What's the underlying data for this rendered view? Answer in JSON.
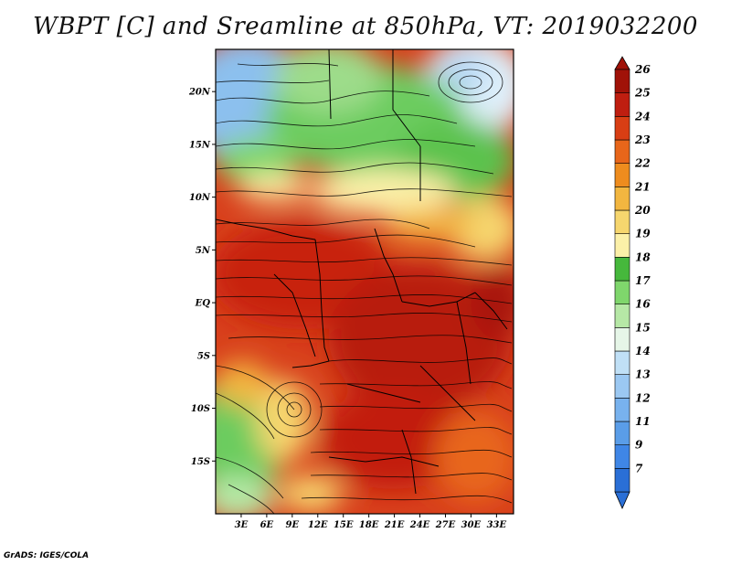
{
  "title": "WBPT [C] and Sreamline at 850hPa, VT: 2019032200",
  "footer": "GrADS: IGES/COLA",
  "map": {
    "lat_labels": [
      "20N",
      "15N",
      "10N",
      "5N",
      "EQ",
      "5S",
      "10S",
      "15S"
    ],
    "lon_labels": [
      "3E",
      "6E",
      "9E",
      "12E",
      "15E",
      "18E",
      "21E",
      "24E",
      "27E",
      "30E",
      "33E"
    ],
    "lon_range": [
      0,
      35
    ],
    "lat_range": [
      -20,
      24
    ]
  },
  "colorbar": {
    "labels": [
      "7",
      "9",
      "11",
      "12",
      "13",
      "14",
      "15",
      "16",
      "17",
      "18",
      "19",
      "20",
      "21",
      "22",
      "23",
      "24",
      "25",
      "26"
    ],
    "colors": [
      "#2a6fd6",
      "#3f86e6",
      "#5a9de8",
      "#78b2ee",
      "#9bc8f2",
      "#c0e0f6",
      "#e6f6e8",
      "#b6e8a6",
      "#7fd66c",
      "#46b83c",
      "#fbf0a8",
      "#f6d66e",
      "#f2b640",
      "#ee8c1e",
      "#e8661a",
      "#d83e14",
      "#bf1e10",
      "#a01208"
    ]
  }
}
